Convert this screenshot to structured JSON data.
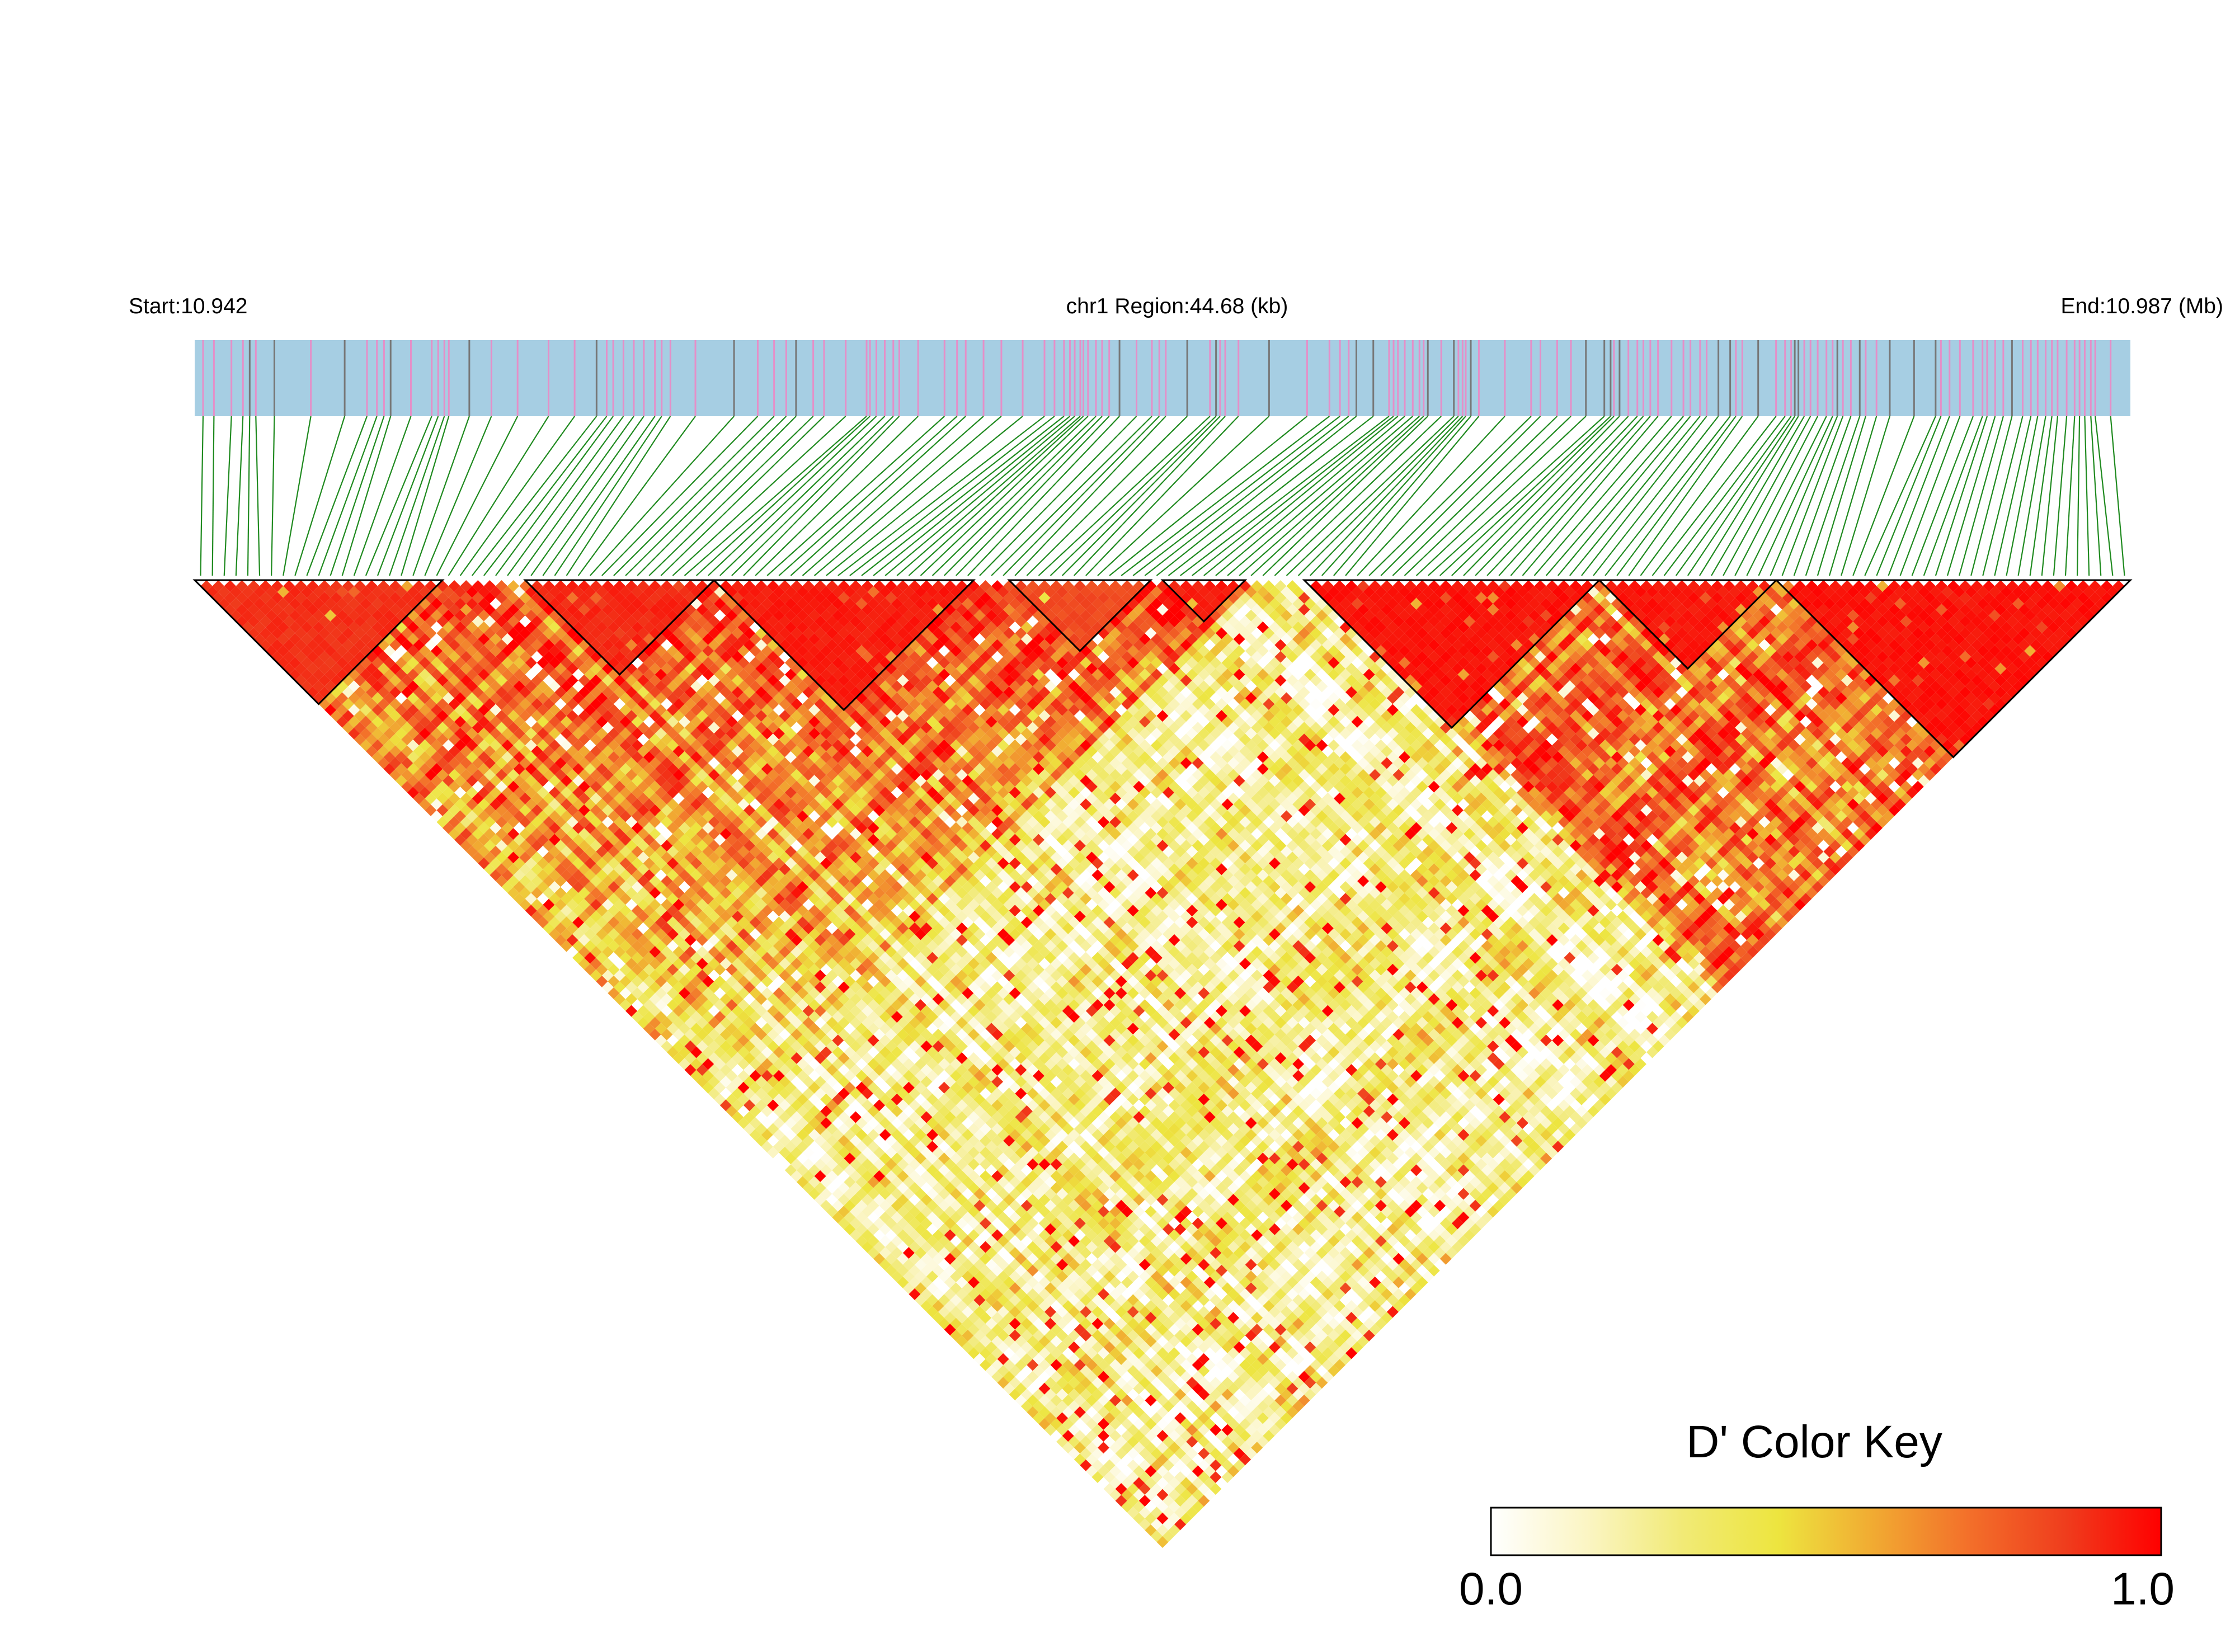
{
  "chart_data": {
    "type": "heatmap",
    "subtype": "linkage-disequilibrium triangle",
    "header": {
      "start_label": "Start:10.942",
      "region_label": "chr1 Region:44.68 (kb)",
      "end_label": "End:10.987 (Mb)"
    },
    "region": {
      "chromosome": "chr1",
      "start_mb": 10.942,
      "end_mb": 10.987,
      "length_kb": 44.68
    },
    "metric": "D'",
    "n_markers": 164,
    "blocks": [
      {
        "from": 0,
        "to": 20,
        "level": 0.92
      },
      {
        "from": 28,
        "to": 43,
        "level": 0.94
      },
      {
        "from": 44,
        "to": 65,
        "level": 0.97
      },
      {
        "from": 69,
        "to": 80,
        "level": 0.85
      },
      {
        "from": 82,
        "to": 88,
        "level": 0.96
      },
      {
        "from": 94,
        "to": 118,
        "level": 0.99
      },
      {
        "from": 119,
        "to": 133,
        "level": 0.98
      },
      {
        "from": 134,
        "to": 163,
        "level": 0.99
      }
    ],
    "colors": {
      "track_fill": "#a6cee3",
      "marker_tick": "#e58fc8",
      "marker_tick_alt": "#777777",
      "connector_line": "#1f8a1f",
      "block_outline": "#000000",
      "scale": [
        "#ffffff",
        "#fbf5c4",
        "#f1ea76",
        "#ede53f",
        "#f1aa32",
        "#f36f2a",
        "#ef3d1d",
        "#ff0000"
      ]
    },
    "color_key": {
      "title": "D' Color Key",
      "min_label": "0.0",
      "max_label": "1.0",
      "range": [
        0.0,
        1.0
      ]
    }
  }
}
